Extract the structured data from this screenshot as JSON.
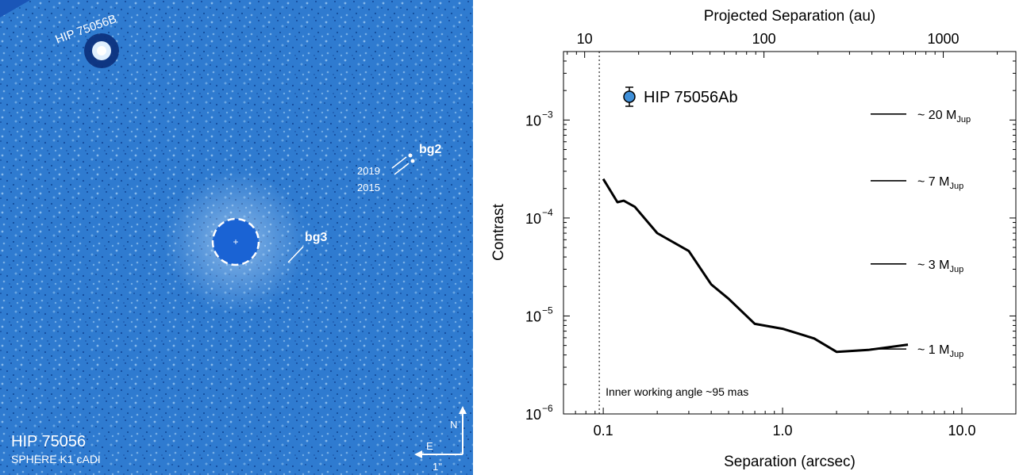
{
  "image_panel": {
    "target_name": "HIP 75056",
    "instrument": "SPHERE K1 cADI",
    "companion_label": "HIP 75056B",
    "bg2_label": "bg2",
    "bg3_label": "bg3",
    "epoch_2019": "2019",
    "epoch_2015": "2015",
    "compass_north": "N",
    "compass_east": "E",
    "scale_label": "1\""
  },
  "chart_data": {
    "type": "line",
    "xlabel": "Separation (arcsec)",
    "top_xlabel": "Projected Separation (au)",
    "ylabel": "Contrast",
    "x_scale": "log",
    "y_scale": "log",
    "xlim": [
      0.06,
      20
    ],
    "ylim": [
      1e-06,
      0.005
    ],
    "x_ticks": [
      0.1,
      1.0,
      10.0
    ],
    "x_tick_labels": [
      "0.1",
      "1.0",
      "10.0"
    ],
    "y_ticks": [
      1e-06,
      1e-05,
      0.0001,
      0.001
    ],
    "y_tick_labels": [
      "10",
      "10",
      "10",
      "10"
    ],
    "y_tick_exponents": [
      "−6",
      "−5",
      "−4",
      "−3"
    ],
    "top_x_ticks_au": [
      10,
      100,
      1000
    ],
    "top_x_tick_labels": [
      "10",
      "100",
      "1000"
    ],
    "au_per_arcsec": 127,
    "legend_point": {
      "name": "HIP 75056Ab",
      "color": "#3f8fd8"
    },
    "inner_working_angle": {
      "x": 0.095,
      "text": "Inner working angle ~95 mas"
    },
    "mass_lines": [
      {
        "contrast": 0.00115,
        "label_prefix": "~ 20 M",
        "label_sub": "Jup"
      },
      {
        "contrast": 0.00024,
        "label_prefix": "~ 7 M",
        "label_sub": "Jup"
      },
      {
        "contrast": 3.4e-05,
        "label_prefix": "~ 3 M",
        "label_sub": "Jup"
      },
      {
        "contrast": 4.6e-06,
        "label_prefix": "~ 1 M",
        "label_sub": "Jup"
      }
    ],
    "series": [
      {
        "x": [
          0.1,
          0.12,
          0.13,
          0.15,
          0.2,
          0.3,
          0.4,
          0.5,
          0.7,
          1.0,
          1.5,
          2.0,
          3.0,
          5.0
        ],
        "y": [
          0.00025,
          0.000145,
          0.00015,
          0.00013,
          7e-05,
          4.6e-05,
          2.1e-05,
          1.5e-05,
          8.3e-06,
          7.4e-06,
          5.9e-06,
          4.3e-06,
          4.5e-06,
          5.1e-06
        ]
      }
    ]
  }
}
